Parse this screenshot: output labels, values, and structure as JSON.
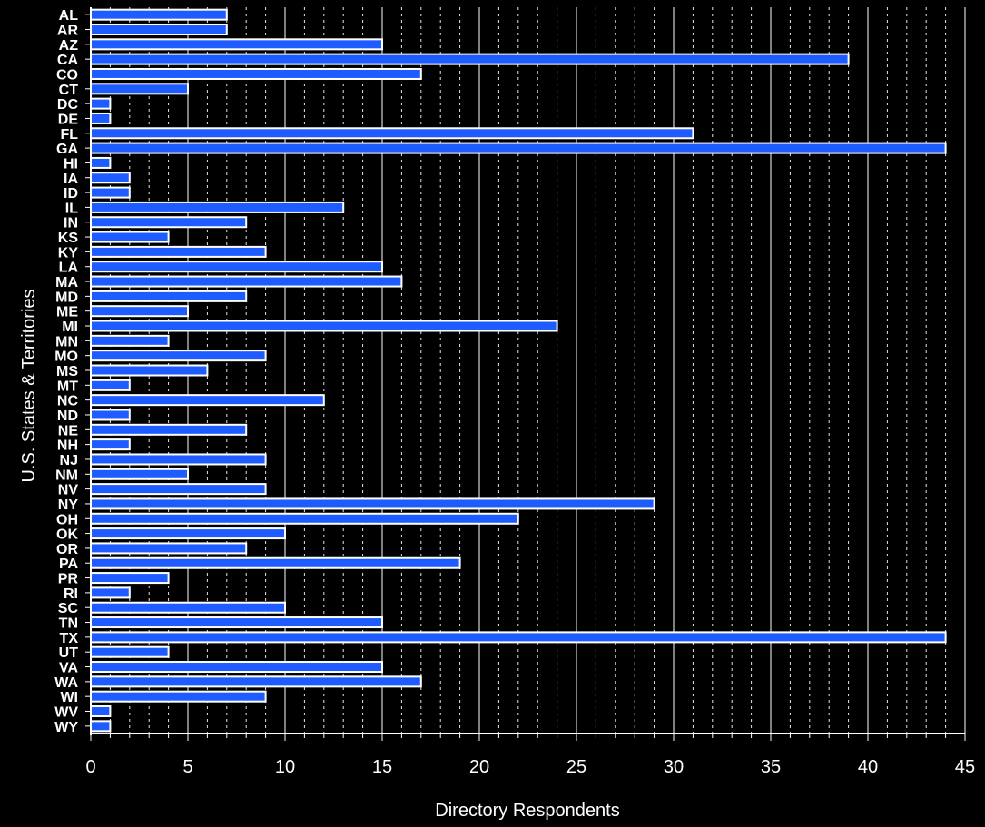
{
  "chart_data": {
    "type": "bar",
    "orientation": "horizontal",
    "xlabel": "Directory Respondents",
    "ylabel": "U.S. States & Territories",
    "xlim": [
      0,
      45
    ],
    "x_ticks": [
      0,
      5,
      10,
      15,
      20,
      25,
      30,
      35,
      40,
      45
    ],
    "x_minor_step": 1,
    "grid": true,
    "bar_color": "#1f5cff",
    "bar_edge_color": "#ffffff",
    "background_color": "#000000",
    "categories": [
      "AL",
      "AR",
      "AZ",
      "CA",
      "CO",
      "CT",
      "DC",
      "DE",
      "FL",
      "GA",
      "HI",
      "IA",
      "ID",
      "IL",
      "IN",
      "KS",
      "KY",
      "LA",
      "MA",
      "MD",
      "ME",
      "MI",
      "MN",
      "MO",
      "MS",
      "MT",
      "NC",
      "ND",
      "NE",
      "NH",
      "NJ",
      "NM",
      "NV",
      "NY",
      "OH",
      "OK",
      "OR",
      "PA",
      "PR",
      "RI",
      "SC",
      "TN",
      "TX",
      "UT",
      "VA",
      "WA",
      "WI",
      "WV",
      "WY"
    ],
    "values": [
      7,
      7,
      15,
      39,
      17,
      5,
      1,
      1,
      31,
      44,
      1,
      2,
      2,
      13,
      8,
      4,
      9,
      15,
      16,
      8,
      5,
      24,
      4,
      9,
      6,
      2,
      12,
      2,
      8,
      2,
      9,
      5,
      9,
      29,
      22,
      10,
      8,
      19,
      4,
      2,
      10,
      15,
      44,
      4,
      15,
      17,
      9,
      1,
      1
    ]
  }
}
